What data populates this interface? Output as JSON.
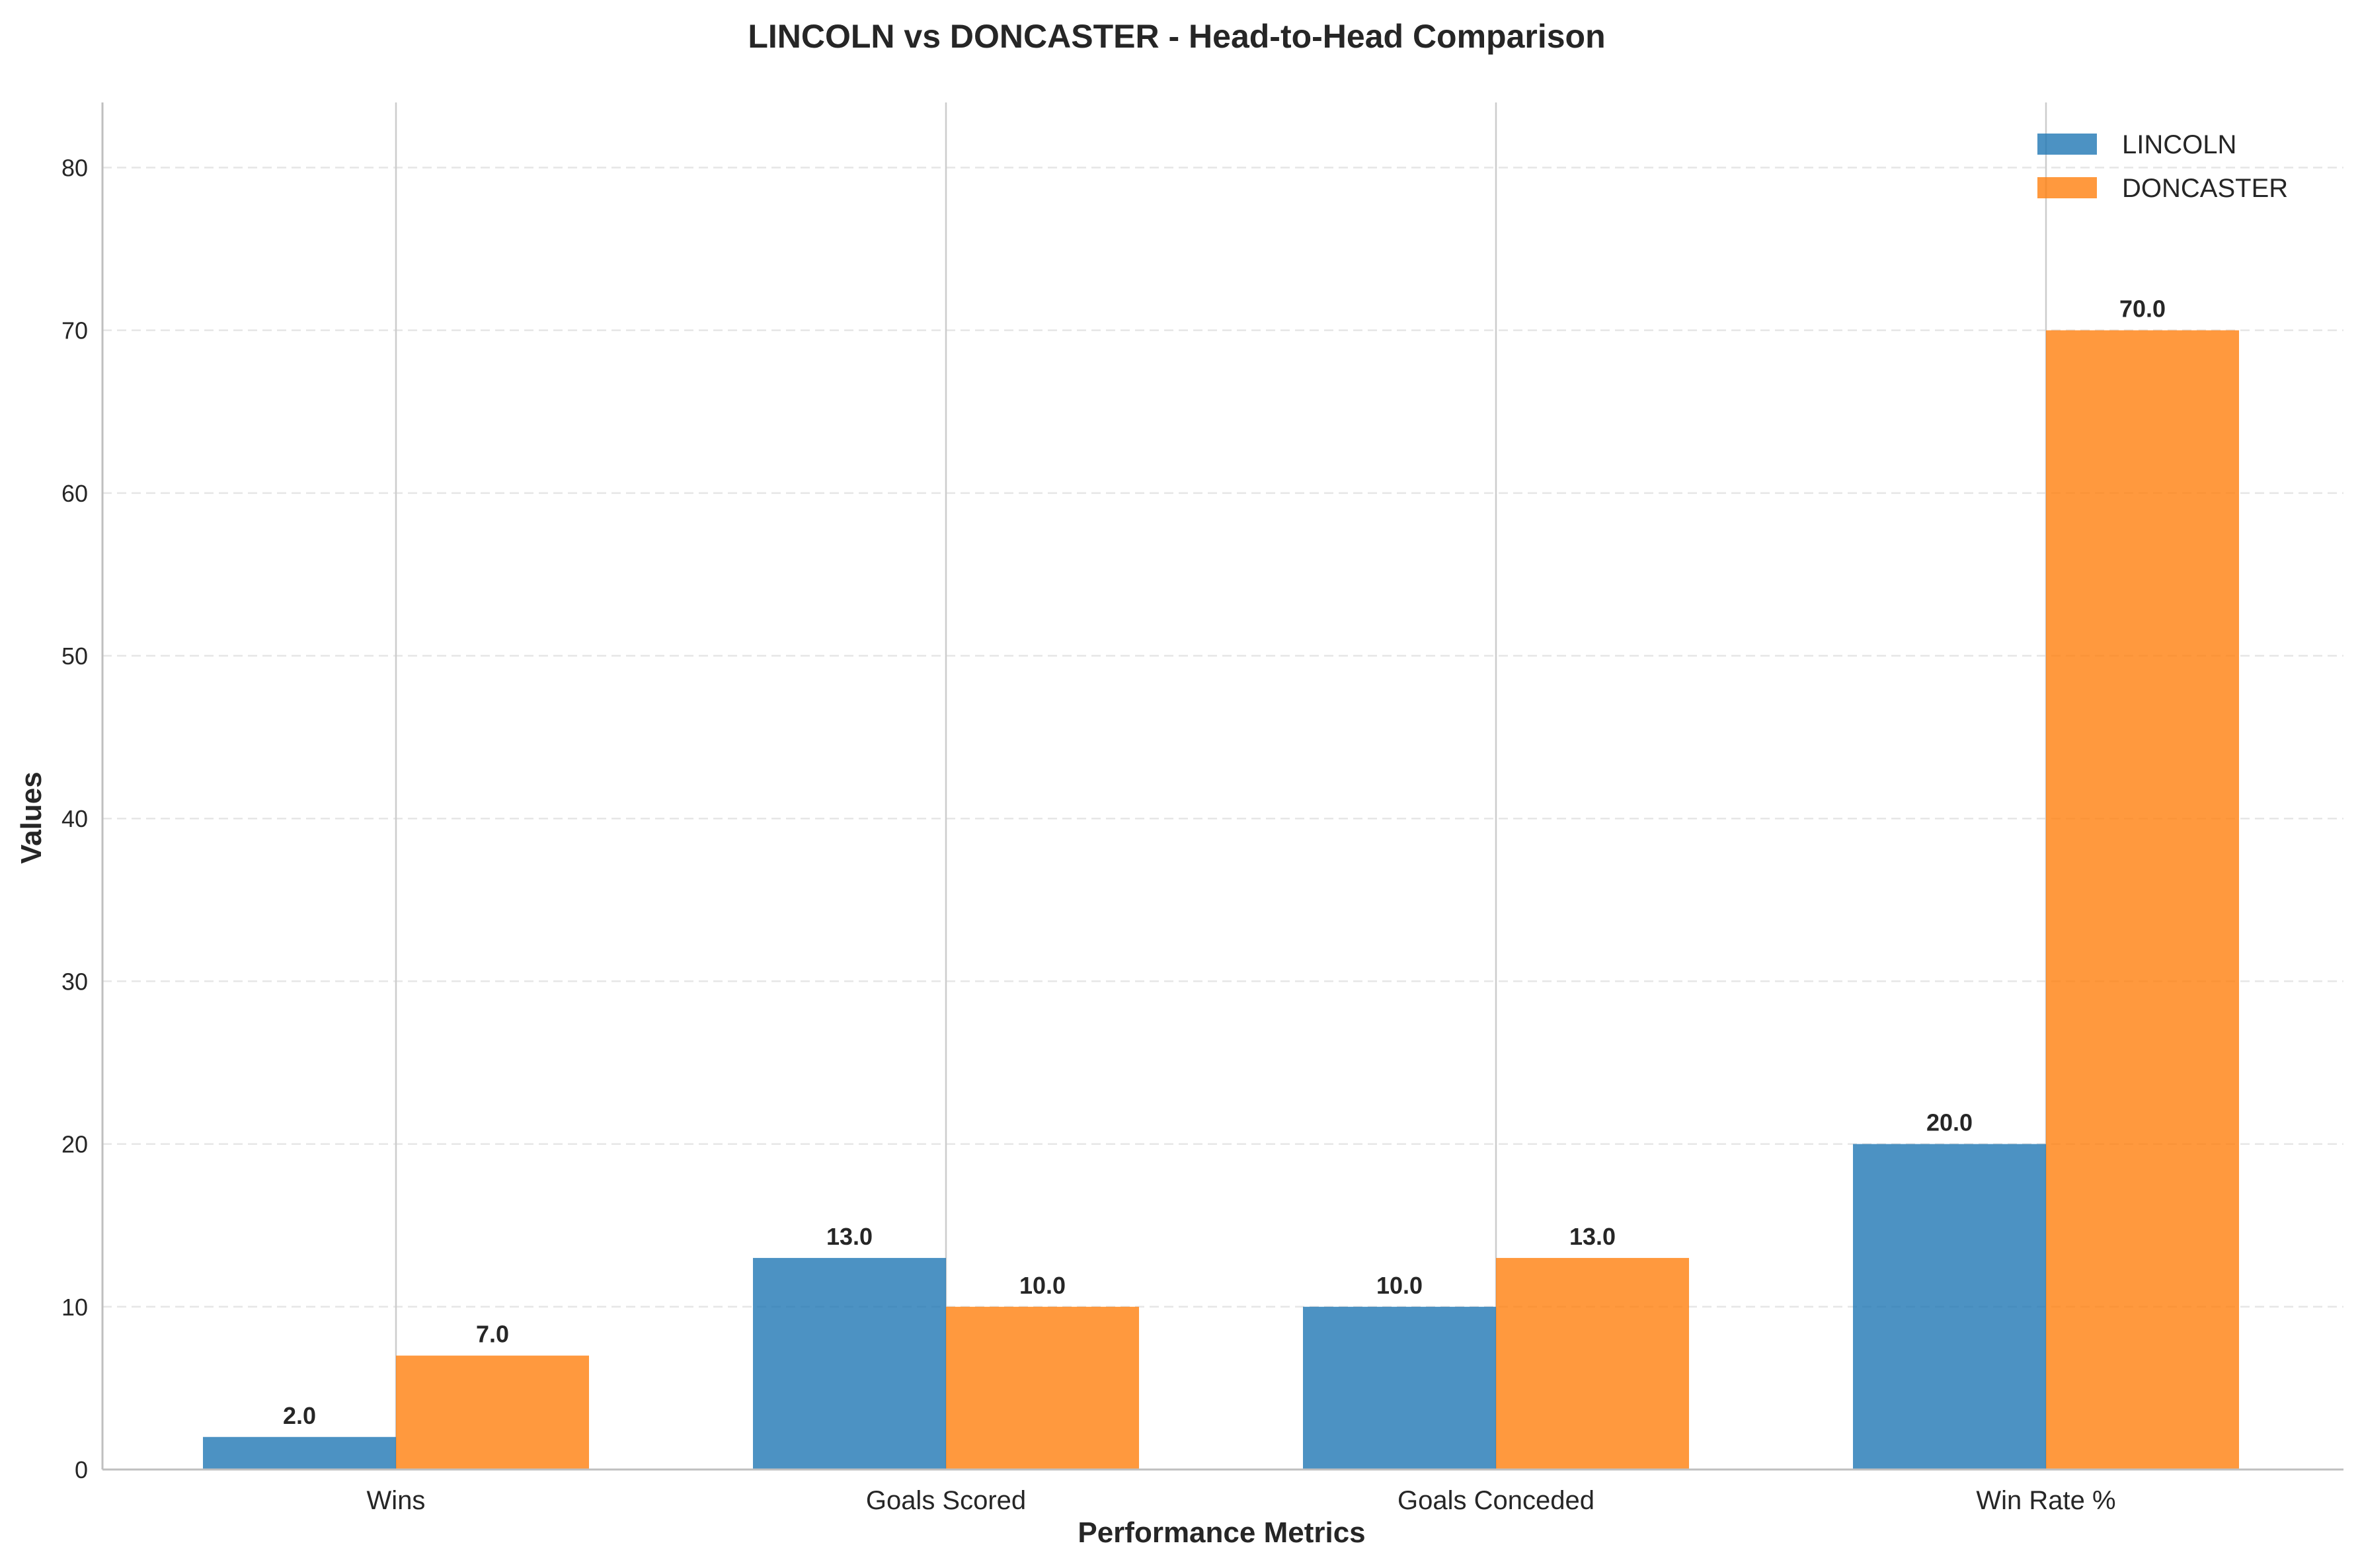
{
  "chart_data": {
    "type": "bar",
    "title": "LINCOLN vs DONCASTER - Head-to-Head Comparison",
    "xlabel": "Performance Metrics",
    "ylabel": "Values",
    "categories": [
      "Wins",
      "Goals Scored",
      "Goals Conceded",
      "Win Rate %"
    ],
    "series": [
      {
        "name": "LINCOLN",
        "values": [
          2.0,
          13.0,
          10.0,
          20.0
        ],
        "color": "#1f77b4",
        "labels": [
          "2.0",
          "13.0",
          "10.0",
          "20.0"
        ]
      },
      {
        "name": "DONCASTER",
        "values": [
          7.0,
          10.0,
          13.0,
          70.0
        ],
        "color": "#ff7f0e",
        "labels": [
          "7.0",
          "10.0",
          "13.0",
          "70.0"
        ]
      }
    ],
    "ylim": [
      0,
      84
    ],
    "yticks": [
      0,
      10,
      20,
      30,
      40,
      50,
      60,
      70,
      80
    ],
    "ytick_labels": [
      "0",
      "10",
      "20",
      "30",
      "40",
      "50",
      "60",
      "70",
      "80"
    ],
    "grid": "y-dashed",
    "legend_position": "top-right"
  }
}
